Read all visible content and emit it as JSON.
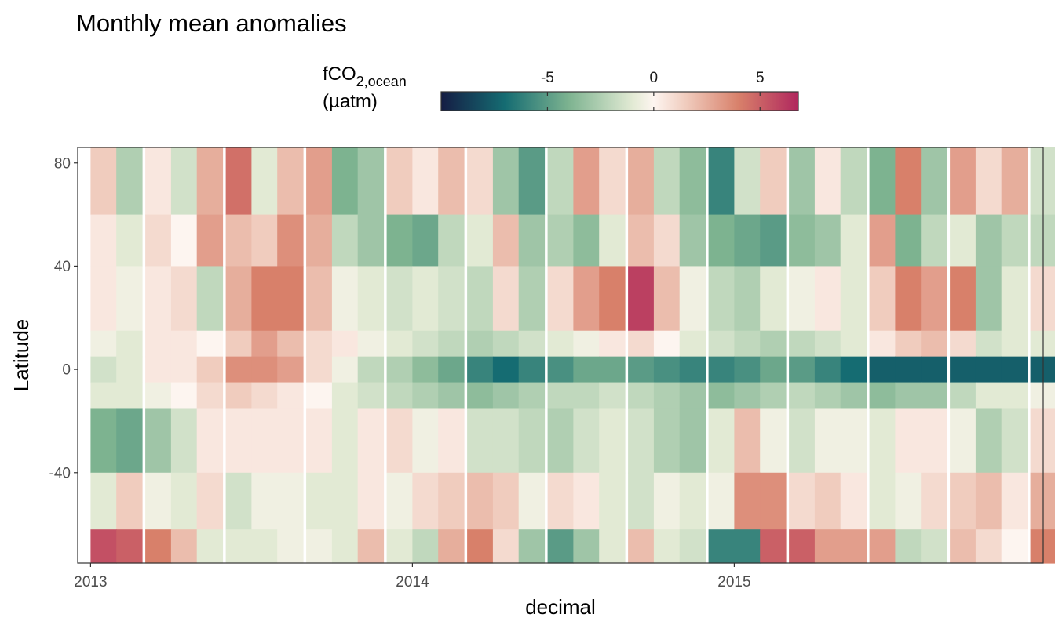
{
  "chart_data": {
    "type": "heatmap",
    "title": "Monthly mean anomalies",
    "xlabel": "decimal",
    "ylabel": "Latitude",
    "x_ticks": [
      "2013",
      "2014",
      "2015"
    ],
    "y_ticks": [
      "80",
      "40",
      "0",
      "-40"
    ],
    "xlim": [
      2012.96,
      2015.96
    ],
    "ylim": [
      -75,
      86
    ],
    "x_months": [
      2013.04,
      2013.12,
      2013.21,
      2013.29,
      2013.37,
      2013.46,
      2013.54,
      2013.62,
      2013.71,
      2013.79,
      2013.87,
      2013.96,
      2014.04,
      2014.12,
      2014.21,
      2014.29,
      2014.37,
      2014.46,
      2014.54,
      2014.62,
      2014.71,
      2014.79,
      2014.87,
      2014.96,
      2015.04,
      2015.12,
      2015.21,
      2015.29,
      2015.37,
      2015.46,
      2015.54,
      2015.62,
      2015.71,
      2015.79,
      2015.87,
      2015.96
    ],
    "y_bands": [
      {
        "lat_from": 60,
        "lat_to": 86,
        "values": [
          1.5,
          -2.5,
          0.5,
          -1.5,
          2.5,
          4.5,
          -1,
          2,
          3,
          -4,
          -3,
          1.5,
          0.5,
          2,
          1,
          -3,
          -5,
          -2,
          3,
          1,
          2.5,
          -2,
          -3.5,
          -6,
          -1.5,
          1.5,
          -3,
          0.5,
          -2,
          -4,
          4,
          -3,
          3,
          1,
          2.5,
          -1.5
        ]
      },
      {
        "lat_from": 40,
        "lat_to": 60,
        "values": [
          0.5,
          -1,
          1,
          0,
          3,
          2,
          1.5,
          3.5,
          2.5,
          -2,
          -3,
          -4,
          -4.5,
          -2,
          -1,
          2,
          -3,
          -2.5,
          -3.5,
          -1,
          2,
          1,
          -3,
          -4,
          -4.5,
          -5,
          -3.5,
          -3,
          -1,
          3,
          -4,
          -2,
          -1,
          -3,
          -2,
          -2
        ]
      },
      {
        "lat_from": 15,
        "lat_to": 40,
        "values": [
          0.5,
          -0.5,
          0.5,
          1,
          -2,
          2.5,
          4,
          4,
          2,
          -0.5,
          -1,
          -1.5,
          -1,
          -1.5,
          -2,
          1,
          -2.5,
          1,
          3,
          4,
          6,
          2,
          -0.5,
          -2,
          -2.5,
          -1,
          -0.5,
          0.5,
          -1,
          1.5,
          4,
          3,
          4,
          -3,
          -1,
          1
        ]
      },
      {
        "lat_from": 5,
        "lat_to": 15,
        "values": [
          -0.5,
          -1,
          0.5,
          0.5,
          0,
          1.5,
          3,
          2,
          1,
          0.5,
          -0.5,
          -1,
          -1.5,
          -2,
          -2.5,
          -2,
          -1.5,
          -1,
          -0.5,
          0.5,
          1,
          0,
          -1,
          -1.5,
          -2,
          -2.5,
          -2,
          -1.5,
          -1,
          0.5,
          1.5,
          2,
          1,
          -1.5,
          -1,
          -1
        ]
      },
      {
        "lat_from": -5,
        "lat_to": 5,
        "values": [
          -1.5,
          -1,
          0.5,
          0.5,
          1.5,
          3.5,
          3.5,
          3,
          1,
          -0.5,
          -2,
          -2.5,
          -3.5,
          -4.5,
          -6,
          -7,
          -6,
          -5.5,
          -4.5,
          -4.5,
          -5,
          -5.5,
          -6,
          -6,
          -5.5,
          -4.5,
          -5,
          -6,
          -7,
          -7.5,
          -7.5,
          -7.5,
          -7.5,
          -7.5,
          -7.5,
          -7.5
        ]
      },
      {
        "lat_from": -15,
        "lat_to": -5,
        "values": [
          -1,
          -1,
          -0.5,
          0,
          1,
          1.5,
          1,
          0.5,
          0,
          -1,
          -1.5,
          -2,
          -2.5,
          -3,
          -3.5,
          -3,
          -2.5,
          -2,
          -2,
          -1.5,
          -2,
          -2.5,
          -3,
          -3.5,
          -3,
          -2.5,
          -2,
          -2.5,
          -3,
          -3.5,
          -3,
          -3,
          -2,
          -1,
          -1,
          -0.5
        ]
      },
      {
        "lat_from": -40,
        "lat_to": -15,
        "values": [
          -4,
          -4.5,
          -3,
          -1.5,
          0.5,
          0.5,
          0.5,
          0.5,
          0.5,
          -1,
          0.5,
          1,
          -0.5,
          0.5,
          -1.5,
          -1.5,
          -2,
          -2.5,
          -1.5,
          -1,
          -1.5,
          -2.5,
          -3,
          -1,
          2,
          -0.5,
          -1.5,
          -0.5,
          -0.5,
          -1,
          0.5,
          0.5,
          -0.5,
          -2.5,
          -1.5,
          1
        ]
      },
      {
        "lat_from": -62,
        "lat_to": -40,
        "values": [
          -1,
          1.5,
          -0.5,
          -1,
          1,
          -1.5,
          -0.5,
          -0.5,
          -1,
          -1,
          0.5,
          -0.5,
          1,
          1.5,
          2,
          1.5,
          -0.5,
          1,
          0.5,
          -1,
          -1.5,
          -0.5,
          -1,
          -0.5,
          3.5,
          3.5,
          1,
          1.5,
          0.5,
          -1,
          -0.5,
          1,
          1.5,
          2,
          0.5,
          2.5
        ]
      },
      {
        "lat_from": -75,
        "lat_to": -62,
        "values": [
          5.5,
          5,
          4,
          2,
          -1,
          -1,
          -1,
          -0.5,
          -0.5,
          -1,
          2,
          -1,
          -2,
          2.5,
          4,
          1,
          -3,
          -5,
          -3,
          -1,
          2,
          -1,
          -1.5,
          -6,
          -6,
          5,
          5,
          3,
          3,
          3,
          -2,
          -1.5,
          2,
          1,
          0,
          4
        ]
      }
    ],
    "color_scale": {
      "title_main": "fCO",
      "title_sub": "2,ocean",
      "title_unit": "(µatm)",
      "ticks": [
        "-5",
        "0",
        "5"
      ],
      "tick_values": [
        -5,
        0,
        5
      ],
      "range": [
        -10,
        6.8
      ],
      "stops": [
        {
          "v": -10,
          "color": "#151d44"
        },
        {
          "v": -7,
          "color": "#156c72"
        },
        {
          "v": -4,
          "color": "#7db390"
        },
        {
          "v": -1,
          "color": "#e2ead4"
        },
        {
          "v": 0,
          "color": "#fdf5f0"
        },
        {
          "v": 1.5,
          "color": "#f0ccbe"
        },
        {
          "v": 4,
          "color": "#d8806a"
        },
        {
          "v": 6.8,
          "color": "#b0275e"
        }
      ]
    }
  }
}
